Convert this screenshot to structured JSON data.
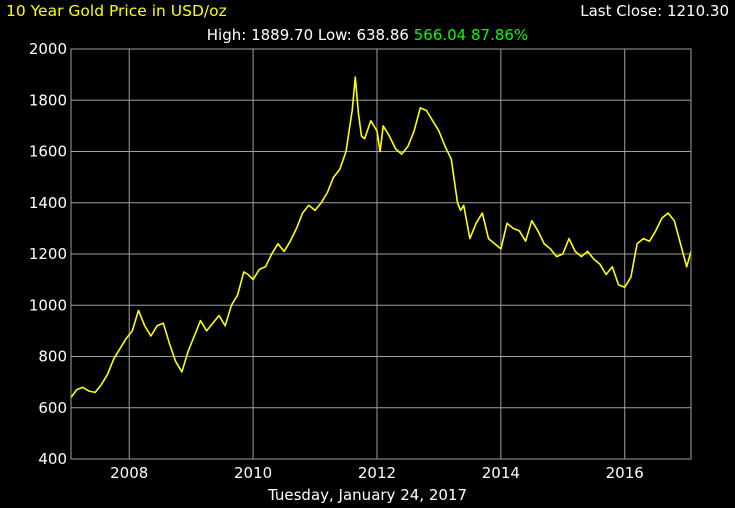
{
  "header": {
    "title": "10 Year Gold Price in USD/oz",
    "last_close_label": "Last Close:",
    "last_close_value": "1210.30",
    "high_label": "High:",
    "high_value": "1889.70",
    "low_label": "Low:",
    "low_value": "638.86",
    "change_value": "566.04",
    "change_percent": "87.86%"
  },
  "footer": {
    "date": "Tuesday, January 24, 2017"
  },
  "colors": {
    "background": "#000000",
    "line": "#ffff00",
    "grid": "#a0a0a0",
    "text": "#ffffff",
    "positive": "#00ff00"
  },
  "chart_data": {
    "type": "line",
    "title": "10 Year Gold Price in USD/oz",
    "xlabel": "",
    "ylabel": "",
    "xlim": [
      2007.06,
      2017.07
    ],
    "ylim": [
      400,
      2000
    ],
    "x_ticks": [
      2008,
      2010,
      2012,
      2014,
      2016
    ],
    "y_ticks": [
      400,
      600,
      800,
      1000,
      1200,
      1400,
      1600,
      1800,
      2000
    ],
    "grid": true,
    "legend": "none",
    "series": [
      {
        "name": "",
        "x": [
          2007.06,
          2007.15,
          2007.25,
          2007.35,
          2007.45,
          2007.55,
          2007.65,
          2007.75,
          2007.85,
          2007.95,
          2008.05,
          2008.15,
          2008.25,
          2008.35,
          2008.45,
          2008.55,
          2008.65,
          2008.75,
          2008.85,
          2008.95,
          2009.05,
          2009.15,
          2009.25,
          2009.35,
          2009.45,
          2009.55,
          2009.65,
          2009.75,
          2009.85,
          2009.92,
          2010.0,
          2010.1,
          2010.2,
          2010.3,
          2010.4,
          2010.5,
          2010.6,
          2010.7,
          2010.8,
          2010.9,
          2011.0,
          2011.1,
          2011.2,
          2011.3,
          2011.4,
          2011.5,
          2011.6,
          2011.65,
          2011.7,
          2011.75,
          2011.8,
          2011.9,
          2012.0,
          2012.05,
          2012.1,
          2012.2,
          2012.3,
          2012.4,
          2012.5,
          2012.6,
          2012.7,
          2012.8,
          2012.9,
          2013.0,
          2013.1,
          2013.2,
          2013.3,
          2013.35,
          2013.4,
          2013.5,
          2013.6,
          2013.7,
          2013.8,
          2013.9,
          2014.0,
          2014.1,
          2014.2,
          2014.3,
          2014.4,
          2014.5,
          2014.6,
          2014.7,
          2014.8,
          2014.9,
          2015.0,
          2015.1,
          2015.2,
          2015.3,
          2015.4,
          2015.5,
          2015.6,
          2015.7,
          2015.8,
          2015.9,
          2016.0,
          2016.1,
          2016.2,
          2016.3,
          2016.4,
          2016.5,
          2016.6,
          2016.7,
          2016.8,
          2016.9,
          2017.0,
          2017.07
        ],
        "y": [
          640,
          670,
          680,
          665,
          660,
          690,
          730,
          790,
          830,
          870,
          900,
          980,
          920,
          880,
          920,
          930,
          850,
          780,
          740,
          820,
          880,
          940,
          900,
          930,
          960,
          920,
          1000,
          1040,
          1130,
          1120,
          1100,
          1140,
          1150,
          1200,
          1240,
          1210,
          1250,
          1300,
          1360,
          1390,
          1370,
          1400,
          1440,
          1500,
          1530,
          1600,
          1760,
          1890,
          1750,
          1660,
          1650,
          1720,
          1680,
          1600,
          1700,
          1660,
          1610,
          1590,
          1620,
          1680,
          1770,
          1760,
          1720,
          1680,
          1620,
          1570,
          1400,
          1370,
          1390,
          1260,
          1320,
          1360,
          1260,
          1240,
          1220,
          1320,
          1300,
          1290,
          1250,
          1330,
          1290,
          1240,
          1220,
          1190,
          1200,
          1260,
          1210,
          1190,
          1210,
          1180,
          1160,
          1120,
          1150,
          1080,
          1070,
          1110,
          1240,
          1260,
          1250,
          1290,
          1340,
          1360,
          1330,
          1240,
          1150,
          1210
        ]
      }
    ]
  }
}
